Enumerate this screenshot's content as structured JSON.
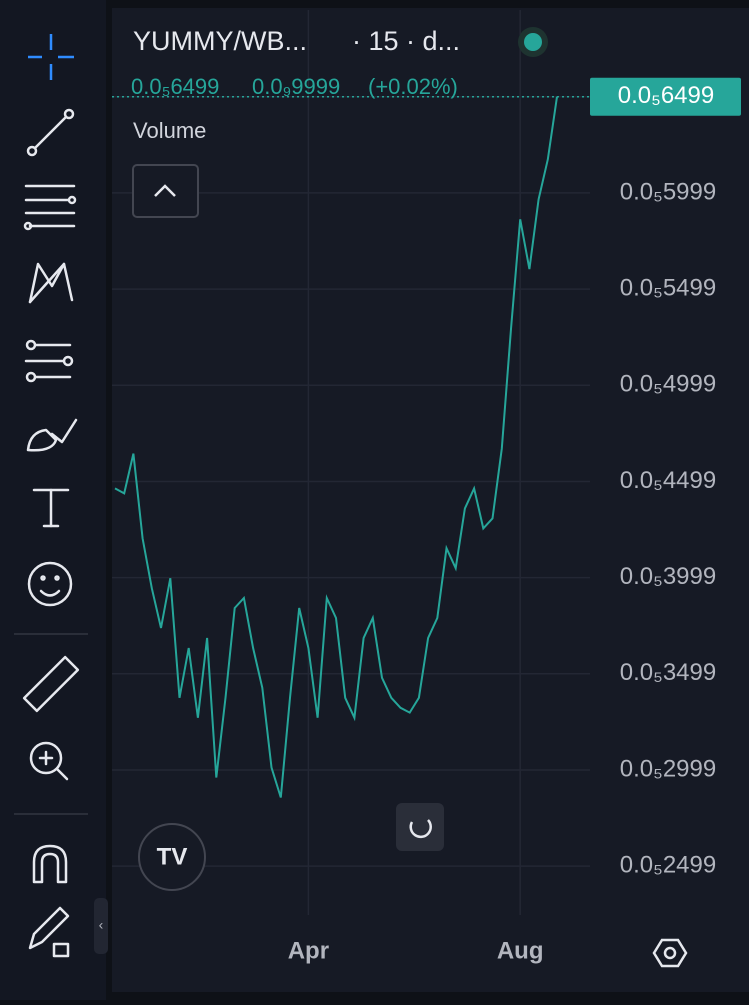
{
  "header": {
    "symbol": "YUMMY/WB...",
    "interval": "· 15 · d...",
    "price": "0.0₅6499",
    "change": "0.0₉9999",
    "change_percent": "(+0.02%)"
  },
  "chart_data": {
    "type": "line",
    "indicator": "Volume",
    "last_value_label": "0.0₅6499",
    "categories": [
      null,
      null,
      null,
      null,
      null,
      null,
      null,
      null,
      null,
      null,
      null,
      null,
      null,
      null,
      null,
      null,
      null,
      null,
      null,
      null,
      null,
      "Apr",
      null,
      null,
      null,
      null,
      null,
      null,
      null,
      null,
      null,
      null,
      null,
      null,
      null,
      null,
      null,
      null,
      null,
      null,
      null,
      null,
      null,
      null,
      "Aug",
      null,
      null,
      null,
      null
    ],
    "series": [
      {
        "color": "#26a69a",
        "values": [
          4.463e-07,
          4.437e-07,
          4.644e-07,
          4.203e-07,
          3.944e-07,
          3.737e-07,
          3.996e-07,
          3.374e-07,
          3.633e-07,
          3.271e-07,
          3.685e-07,
          2.96e-07,
          3.374e-07,
          3.841e-07,
          3.893e-07,
          3.633e-07,
          3.426e-07,
          3.012e-07,
          2.856e-07,
          3.374e-07,
          3.841e-07,
          3.633e-07,
          3.271e-07,
          3.893e-07,
          3.789e-07,
          3.374e-07,
          3.271e-07,
          3.685e-07,
          3.789e-07,
          3.478e-07,
          3.374e-07,
          3.322e-07,
          3.297e-07,
          3.374e-07,
          3.685e-07,
          3.789e-07,
          4.152e-07,
          4.048e-07,
          4.359e-07,
          4.463e-07,
          4.255e-07,
          4.307e-07,
          4.67e-07,
          5.292e-07,
          5.862e-07,
          5.603e-07,
          5.966e-07,
          6.173e-07,
          6.499e-07
        ]
      }
    ],
    "ylim": [
      2.245e-07,
      6.95e-07
    ],
    "yticks": [
      {
        "value": 6.499e-07,
        "label": "0.0₅6499"
      },
      {
        "value": 5.999e-07,
        "label": "0.0₅5999"
      },
      {
        "value": 5.499e-07,
        "label": "0.0₅5499"
      },
      {
        "value": 4.999e-07,
        "label": "0.0₅4999"
      },
      {
        "value": 4.499e-07,
        "label": "0.0₅4499"
      },
      {
        "value": 3.999e-07,
        "label": "0.0₅3999"
      },
      {
        "value": 3.499e-07,
        "label": "0.0₅3499"
      },
      {
        "value": 2.999e-07,
        "label": "0.0₅2999"
      },
      {
        "value": 2.499e-07,
        "label": "0.0₅2499"
      }
    ],
    "grid": true
  }
}
